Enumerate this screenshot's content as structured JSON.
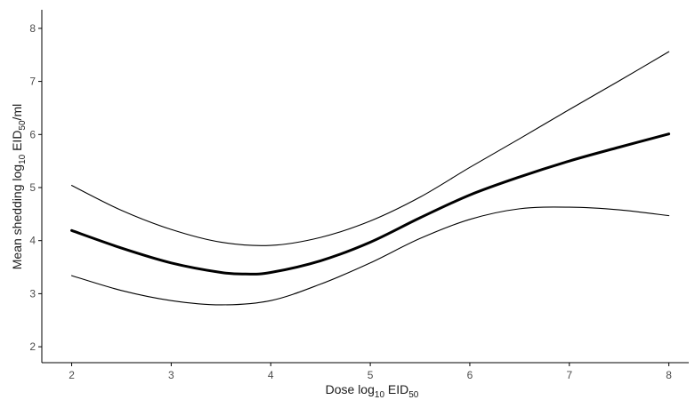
{
  "chart_data": {
    "type": "line",
    "title": "",
    "xlabel": {
      "prefix": "Dose log",
      "sub1": "10",
      "mid": " EID",
      "sub2": "50",
      "suffix": ""
    },
    "ylabel": {
      "prefix": "Mean shedding log",
      "sub1": "10",
      "mid": " EID",
      "sub2": "50",
      "suffix": "/ml"
    },
    "xlim": [
      1.7,
      8.2
    ],
    "ylim": [
      1.7,
      8.35
    ],
    "xticks": [
      2,
      3,
      4,
      5,
      6,
      7,
      8
    ],
    "yticks": [
      2,
      3,
      4,
      5,
      6,
      7,
      8
    ],
    "grid": false,
    "legend": "none",
    "line_color": "#000000",
    "series": [
      {
        "role": "estimate",
        "x": [
          2.0,
          2.5,
          3.0,
          3.5,
          3.75,
          4.0,
          4.5,
          5.0,
          5.5,
          6.0,
          6.5,
          7.0,
          7.5,
          8.0
        ],
        "y": [
          4.19,
          3.86,
          3.58,
          3.4,
          3.37,
          3.4,
          3.62,
          3.97,
          4.43,
          4.86,
          5.2,
          5.5,
          5.76,
          6.01
        ]
      },
      {
        "role": "upper",
        "x": [
          2.0,
          2.5,
          3.0,
          3.5,
          4.0,
          4.5,
          5.0,
          5.5,
          6.0,
          6.5,
          7.0,
          7.5,
          8.0
        ],
        "y": [
          5.04,
          4.57,
          4.21,
          3.97,
          3.91,
          4.06,
          4.37,
          4.82,
          5.38,
          5.92,
          6.47,
          7.01,
          7.56
        ]
      },
      {
        "role": "lower",
        "x": [
          2.0,
          2.5,
          3.0,
          3.5,
          4.0,
          4.5,
          5.0,
          5.5,
          6.0,
          6.5,
          7.0,
          7.5,
          8.0
        ],
        "y": [
          3.34,
          3.06,
          2.87,
          2.79,
          2.87,
          3.18,
          3.58,
          4.04,
          4.4,
          4.6,
          4.63,
          4.58,
          4.47
        ]
      }
    ]
  }
}
